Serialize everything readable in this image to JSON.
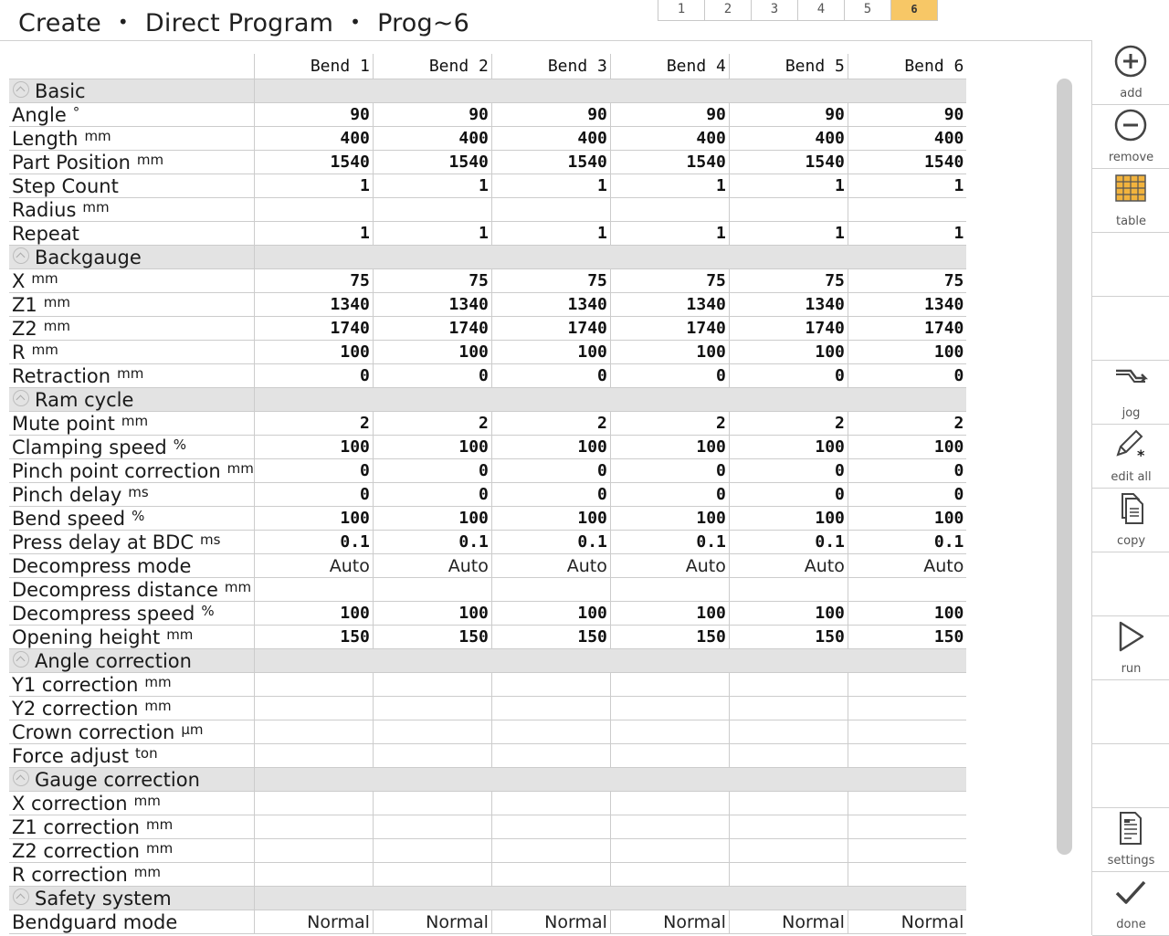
{
  "breadcrumb": {
    "part1": "Create",
    "sep": "•",
    "part2": "Direct Program",
    "part3": "Prog~6"
  },
  "pages": [
    "1",
    "2",
    "3",
    "4",
    "5",
    "6"
  ],
  "active_page": "6",
  "columns": [
    "Bend 1",
    "Bend 2",
    "Bend 3",
    "Bend 4",
    "Bend 5",
    "Bend 6"
  ],
  "sections": [
    {
      "title": "Basic",
      "rows": [
        {
          "label": "Angle",
          "unit": "°",
          "values": [
            "90",
            "90",
            "90",
            "90",
            "90",
            "90"
          ]
        },
        {
          "label": "Length",
          "unit": "mm",
          "values": [
            "400",
            "400",
            "400",
            "400",
            "400",
            "400"
          ]
        },
        {
          "label": "Part Position",
          "unit": "mm",
          "values": [
            "1540",
            "1540",
            "1540",
            "1540",
            "1540",
            "1540"
          ]
        },
        {
          "label": "Step Count",
          "unit": "",
          "values": [
            "1",
            "1",
            "1",
            "1",
            "1",
            "1"
          ]
        },
        {
          "label": "Radius",
          "unit": "mm",
          "values": [
            "",
            "",
            "",
            "",
            "",
            ""
          ]
        },
        {
          "label": "Repeat",
          "unit": "",
          "values": [
            "1",
            "1",
            "1",
            "1",
            "1",
            "1"
          ]
        }
      ]
    },
    {
      "title": "Backgauge",
      "rows": [
        {
          "label": "X",
          "unit": "mm",
          "values": [
            "75",
            "75",
            "75",
            "75",
            "75",
            "75"
          ]
        },
        {
          "label": "Z1",
          "unit": "mm",
          "values": [
            "1340",
            "1340",
            "1340",
            "1340",
            "1340",
            "1340"
          ]
        },
        {
          "label": "Z2",
          "unit": "mm",
          "values": [
            "1740",
            "1740",
            "1740",
            "1740",
            "1740",
            "1740"
          ]
        },
        {
          "label": "R",
          "unit": "mm",
          "values": [
            "100",
            "100",
            "100",
            "100",
            "100",
            "100"
          ]
        },
        {
          "label": "Retraction",
          "unit": "mm",
          "values": [
            "0",
            "0",
            "0",
            "0",
            "0",
            "0"
          ]
        }
      ]
    },
    {
      "title": "Ram cycle",
      "rows": [
        {
          "label": "Mute point",
          "unit": "mm",
          "values": [
            "2",
            "2",
            "2",
            "2",
            "2",
            "2"
          ]
        },
        {
          "label": "Clamping speed",
          "unit": "%",
          "values": [
            "100",
            "100",
            "100",
            "100",
            "100",
            "100"
          ]
        },
        {
          "label": "Pinch point correction",
          "unit": "mm",
          "values": [
            "0",
            "0",
            "0",
            "0",
            "0",
            "0"
          ]
        },
        {
          "label": "Pinch delay",
          "unit": "ms",
          "values": [
            "0",
            "0",
            "0",
            "0",
            "0",
            "0"
          ]
        },
        {
          "label": "Bend speed",
          "unit": "%",
          "values": [
            "100",
            "100",
            "100",
            "100",
            "100",
            "100"
          ]
        },
        {
          "label": "Press delay at BDC",
          "unit": "ms",
          "values": [
            "0.1",
            "0.1",
            "0.1",
            "0.1",
            "0.1",
            "0.1"
          ]
        },
        {
          "label": "Decompress mode",
          "unit": "",
          "text": true,
          "values": [
            "Auto",
            "Auto",
            "Auto",
            "Auto",
            "Auto",
            "Auto"
          ]
        },
        {
          "label": "Decompress distance",
          "unit": "mm",
          "values": [
            "",
            "",
            "",
            "",
            "",
            ""
          ]
        },
        {
          "label": "Decompress speed",
          "unit": "%",
          "values": [
            "100",
            "100",
            "100",
            "100",
            "100",
            "100"
          ]
        },
        {
          "label": "Opening height",
          "unit": "mm",
          "values": [
            "150",
            "150",
            "150",
            "150",
            "150",
            "150"
          ]
        }
      ]
    },
    {
      "title": "Angle correction",
      "rows": [
        {
          "label": "Y1 correction",
          "unit": "mm",
          "values": [
            "",
            "",
            "",
            "",
            "",
            ""
          ]
        },
        {
          "label": "Y2 correction",
          "unit": "mm",
          "values": [
            "",
            "",
            "",
            "",
            "",
            ""
          ]
        },
        {
          "label": "Crown correction",
          "unit": "µm",
          "values": [
            "",
            "",
            "",
            "",
            "",
            ""
          ]
        },
        {
          "label": "Force adjust",
          "unit": "ton",
          "values": [
            "",
            "",
            "",
            "",
            "",
            ""
          ]
        }
      ]
    },
    {
      "title": "Gauge correction",
      "rows": [
        {
          "label": "X correction",
          "unit": "mm",
          "values": [
            "",
            "",
            "",
            "",
            "",
            ""
          ]
        },
        {
          "label": "Z1 correction",
          "unit": "mm",
          "values": [
            "",
            "",
            "",
            "",
            "",
            ""
          ]
        },
        {
          "label": "Z2 correction",
          "unit": "mm",
          "values": [
            "",
            "",
            "",
            "",
            "",
            ""
          ]
        },
        {
          "label": "R correction",
          "unit": "mm",
          "values": [
            "",
            "",
            "",
            "",
            "",
            ""
          ]
        }
      ]
    },
    {
      "title": "Safety system",
      "rows": [
        {
          "label": "Bendguard mode",
          "unit": "",
          "text": true,
          "values": [
            "Normal",
            "Normal",
            "Normal",
            "Normal",
            "Normal",
            "Normal"
          ]
        }
      ]
    }
  ],
  "toolbar": [
    {
      "id": "add",
      "label": "add",
      "icon": "plus-circle-icon"
    },
    {
      "id": "remove",
      "label": "remove",
      "icon": "minus-circle-icon"
    },
    {
      "id": "table",
      "label": "table",
      "icon": "table-grid-icon"
    },
    {
      "id": "empty1",
      "label": "",
      "icon": ""
    },
    {
      "id": "empty2",
      "label": "",
      "icon": ""
    },
    {
      "id": "jog",
      "label": "jog",
      "icon": "jog-arrow-icon"
    },
    {
      "id": "edit-all",
      "label": "edit all",
      "icon": "pencil-asterisk-icon"
    },
    {
      "id": "copy",
      "label": "copy",
      "icon": "copy-documents-icon"
    },
    {
      "id": "empty3",
      "label": "",
      "icon": ""
    },
    {
      "id": "run",
      "label": "run",
      "icon": "play-triangle-icon"
    },
    {
      "id": "empty4",
      "label": "",
      "icon": ""
    },
    {
      "id": "empty5",
      "label": "",
      "icon": ""
    },
    {
      "id": "settings",
      "label": "settings",
      "icon": "settings-document-icon"
    },
    {
      "id": "done",
      "label": "done",
      "icon": "checkmark-icon"
    }
  ],
  "colors": {
    "accent_tab": "#f7c766",
    "section_bg": "#e3e3e3",
    "grid_line": "#cccccc",
    "icon_dark": "#444444",
    "icon_table": "#f2b33d"
  }
}
